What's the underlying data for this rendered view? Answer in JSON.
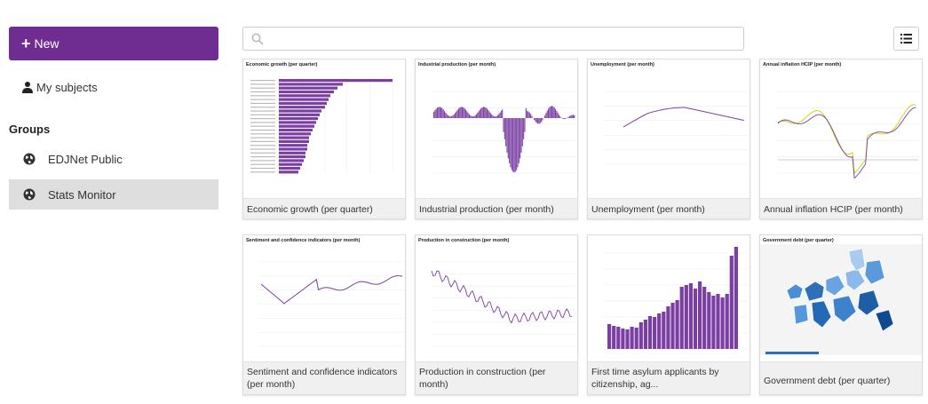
{
  "sidebar": {
    "new_label": "New",
    "my_subjects_label": "My subjects",
    "groups_title": "Groups",
    "groups": [
      {
        "label": "EDJNet Public",
        "active": false
      },
      {
        "label": "Stats Monitor",
        "active": true
      }
    ]
  },
  "search": {
    "placeholder": "",
    "value": ""
  },
  "colors": {
    "accent": "#6f2c91",
    "series": "#7b3fa3"
  },
  "cards": [
    {
      "caption": "Economic growth (per quarter)",
      "thumb_title": "Economic growth (per quarter)",
      "kind": "hbar"
    },
    {
      "caption": "Industrial production (per month)",
      "thumb_title": "Industrial production (per month)",
      "kind": "vbar-pm"
    },
    {
      "caption": "Unemployment (per month)",
      "thumb_title": "Unemployment (per month)",
      "kind": "line-smooth"
    },
    {
      "caption": "Annual inflation HCIP (per month)",
      "thumb_title": "Annual inflation HCIP (per month)",
      "kind": "line-multi"
    },
    {
      "caption": "Sentiment and confidence indicators (per month)",
      "thumb_title": "Sentiment and confidence indicators (per month)",
      "kind": "line-sent"
    },
    {
      "caption": "Production in construction (per month)",
      "thumb_title": "Production in construction (per month)",
      "kind": "line-constr"
    },
    {
      "caption": "First time asylum applicants by citizenship, ag...",
      "thumb_title": "",
      "kind": "vbar-asylum"
    },
    {
      "caption": "Government debt (per quarter)",
      "thumb_title": "Government debt (per quarter)",
      "kind": "map"
    }
  ]
}
